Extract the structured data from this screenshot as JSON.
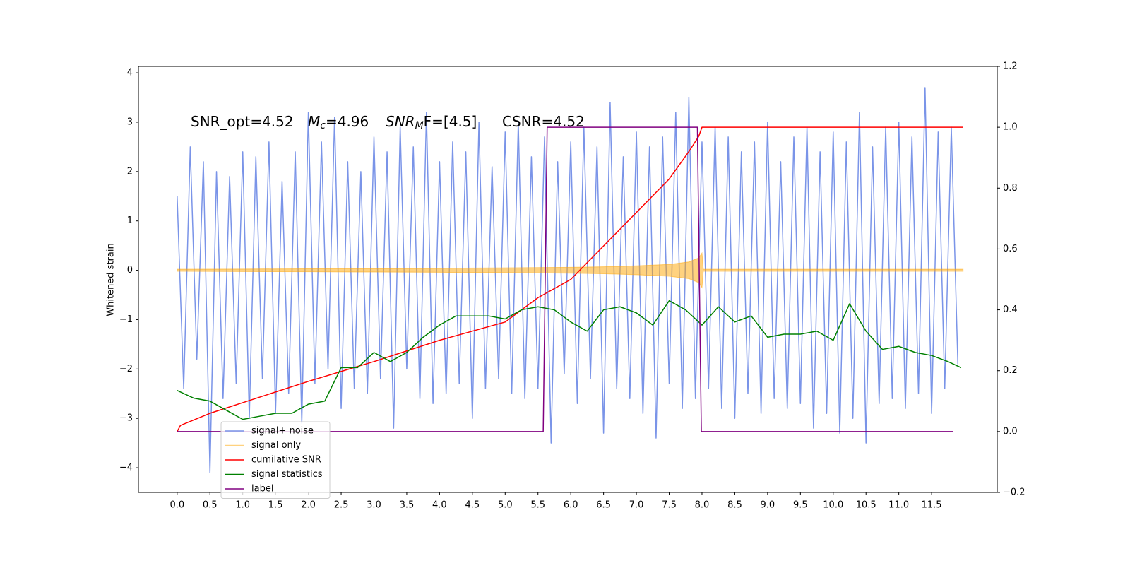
{
  "chart_data": {
    "type": "line",
    "ylabel": "Whitened strain",
    "annotation": [
      {
        "text": "SNR_opt=4.52"
      },
      {
        "text": "M",
        "sub": "c",
        "after": "=4.96"
      },
      {
        "text": "SNR",
        "sub": "M",
        "after": "F=[4.5]"
      },
      {
        "text": "CSNR=4.52"
      }
    ],
    "xlim": [
      -0.59,
      12.5
    ],
    "ylim": [
      -4.5,
      4.13
    ],
    "y2lim": [
      -0.2,
      1.2
    ],
    "xticks": [
      {
        "value": 0,
        "label": "0.0"
      },
      {
        "value": 0.5,
        "label": "0.5"
      },
      {
        "value": 1,
        "label": "1.0"
      },
      {
        "value": 1.5,
        "label": "1.5"
      },
      {
        "value": 2,
        "label": "2.0"
      },
      {
        "value": 2.5,
        "label": "2.5"
      },
      {
        "value": 3,
        "label": "3.0"
      },
      {
        "value": 3.5,
        "label": "3.5"
      },
      {
        "value": 4,
        "label": "4.0"
      },
      {
        "value": 4.5,
        "label": "4.5"
      },
      {
        "value": 5,
        "label": "5.0"
      },
      {
        "value": 5.5,
        "label": "5.5"
      },
      {
        "value": 6,
        "label": "6.0"
      },
      {
        "value": 6.5,
        "label": "6.5"
      },
      {
        "value": 7,
        "label": "7.0"
      },
      {
        "value": 7.5,
        "label": "7.5"
      },
      {
        "value": 8,
        "label": "8.0"
      },
      {
        "value": 8.5,
        "label": "8.5"
      },
      {
        "value": 9,
        "label": "9.0"
      },
      {
        "value": 9.5,
        "label": "9.5"
      },
      {
        "value": 10,
        "label": "10.0"
      },
      {
        "value": 10.5,
        "label": "10.5"
      },
      {
        "value": 11,
        "label": "11.0"
      },
      {
        "value": 11.5,
        "label": "11.5"
      }
    ],
    "yticks": [
      {
        "value": -4,
        "label": "−4"
      },
      {
        "value": -3,
        "label": "−3"
      },
      {
        "value": -2,
        "label": "−2"
      },
      {
        "value": -1,
        "label": "−1"
      },
      0,
      1,
      2,
      3,
      4
    ],
    "y2ticks": [
      {
        "value": -0.2,
        "label": "−0.2"
      },
      {
        "value": 0,
        "label": "0.0"
      },
      0.2,
      0.4,
      0.6,
      0.8,
      {
        "value": 1,
        "label": "1.0"
      },
      1.2
    ],
    "legend": "lower left",
    "series": [
      {
        "name": "signal+ noise",
        "color": "#7a94e8",
        "style": "line",
        "x": [
          0.0,
          0.1,
          0.2,
          0.3,
          0.4,
          0.5,
          0.6,
          0.7,
          0.8,
          0.9,
          1.0,
          1.1,
          1.2,
          1.3,
          1.4,
          1.5,
          1.6,
          1.7,
          1.8,
          1.9,
          2.0,
          2.1,
          2.2,
          2.3,
          2.4,
          2.5,
          2.6,
          2.7,
          2.8,
          2.9,
          3.0,
          3.1,
          3.2,
          3.3,
          3.4,
          3.5,
          3.6,
          3.7,
          3.8,
          3.9,
          4.0,
          4.1,
          4.2,
          4.3,
          4.4,
          4.5,
          4.6,
          4.7,
          4.8,
          4.9,
          5.0,
          5.1,
          5.2,
          5.3,
          5.4,
          5.5,
          5.6,
          5.7,
          5.8,
          5.9,
          6.0,
          6.1,
          6.2,
          6.3,
          6.4,
          6.5,
          6.6,
          6.7,
          6.8,
          6.9,
          7.0,
          7.1,
          7.2,
          7.3,
          7.4,
          7.5,
          7.6,
          7.7,
          7.8,
          7.9,
          8.0,
          8.1,
          8.2,
          8.3,
          8.4,
          8.5,
          8.6,
          8.7,
          8.8,
          8.9,
          9.0,
          9.1,
          9.2,
          9.3,
          9.4,
          9.5,
          9.6,
          9.7,
          9.8,
          9.9,
          10.0,
          10.1,
          10.2,
          10.3,
          10.4,
          10.5,
          10.6,
          10.7,
          10.8,
          10.9,
          11.0,
          11.1,
          11.2,
          11.3,
          11.4,
          11.5,
          11.6,
          11.7,
          11.8,
          11.9
        ],
        "values": [
          1.5,
          -2.4,
          2.5,
          -1.8,
          2.2,
          -4.1,
          2.0,
          -2.6,
          1.9,
          -2.3,
          2.4,
          -3.0,
          2.3,
          -2.2,
          2.6,
          -2.9,
          1.8,
          -2.5,
          2.4,
          -3.1,
          3.2,
          -2.3,
          2.6,
          -2.0,
          3.1,
          -2.8,
          2.2,
          -2.4,
          2.0,
          -2.5,
          2.7,
          -2.2,
          2.4,
          -3.2,
          2.9,
          -2.0,
          2.5,
          -2.6,
          3.2,
          -2.7,
          2.2,
          -2.5,
          2.6,
          -2.3,
          2.4,
          -3.0,
          3.0,
          -2.4,
          2.1,
          -2.2,
          2.8,
          -2.5,
          3.0,
          -2.6,
          2.3,
          -2.4,
          2.7,
          -3.5,
          2.2,
          -2.1,
          2.6,
          -2.7,
          2.9,
          -2.2,
          2.5,
          -3.3,
          3.4,
          -2.4,
          2.3,
          -2.6,
          2.8,
          -2.9,
          2.5,
          -3.4,
          2.7,
          -2.3,
          3.2,
          -2.8,
          3.5,
          -2.6,
          2.6,
          -2.4,
          2.9,
          -2.8,
          2.7,
          -3.0,
          2.4,
          -2.5,
          2.6,
          -2.9,
          3.0,
          -2.6,
          2.2,
          -2.8,
          2.7,
          -2.7,
          2.9,
          -3.2,
          2.4,
          -2.9,
          2.8,
          -3.3,
          2.6,
          -3.0,
          3.2,
          -3.5,
          2.5,
          -2.7,
          2.9,
          -2.6,
          3.0,
          -2.8,
          2.7,
          -2.5,
          3.7,
          -2.9,
          2.8,
          -2.4,
          2.9,
          -1.9
        ]
      },
      {
        "name": "signal only",
        "color": "#ffa500",
        "style": "band",
        "x": [
          0,
          1,
          2,
          3,
          4,
          5,
          5.5,
          6,
          6.5,
          7,
          7.5,
          7.8,
          7.95,
          8.0,
          8.02,
          11.98
        ],
        "values": [
          0.02,
          0.025,
          0.03,
          0.035,
          0.04,
          0.05,
          0.055,
          0.06,
          0.07,
          0.09,
          0.12,
          0.17,
          0.25,
          0.35,
          0.02,
          0.02
        ]
      },
      {
        "name": "cumilative SNR",
        "color": "#ff0000",
        "style": "line",
        "axis": "y2",
        "x": [
          0,
          0.05,
          0.5,
          1,
          2,
          3,
          4,
          5,
          5.5,
          6,
          6.5,
          7,
          7.5,
          7.8,
          7.95,
          8.0,
          11.98
        ],
        "values": [
          0.0,
          0.02,
          0.06,
          0.095,
          0.165,
          0.23,
          0.3,
          0.36,
          0.44,
          0.5,
          0.61,
          0.72,
          0.83,
          0.92,
          0.97,
          1.0,
          1.0
        ]
      },
      {
        "name": "signal statistics",
        "color": "#008000",
        "style": "line",
        "axis": "y2",
        "x": [
          0,
          0.25,
          0.5,
          0.75,
          1.0,
          1.25,
          1.5,
          1.75,
          2.0,
          2.25,
          2.5,
          2.75,
          3.0,
          3.25,
          3.5,
          3.75,
          4.0,
          4.25,
          4.5,
          4.75,
          5.0,
          5.25,
          5.5,
          5.75,
          6.0,
          6.25,
          6.5,
          6.75,
          7.0,
          7.25,
          7.5,
          7.75,
          8.0,
          8.25,
          8.5,
          8.75,
          9.0,
          9.25,
          9.5,
          9.75,
          10.0,
          10.25,
          10.5,
          10.75,
          11.0,
          11.25,
          11.5,
          11.75,
          11.95
        ],
        "values": [
          0.135,
          0.11,
          0.1,
          0.07,
          0.04,
          0.05,
          0.06,
          0.06,
          0.09,
          0.1,
          0.21,
          0.21,
          0.26,
          0.23,
          0.26,
          0.31,
          0.35,
          0.38,
          0.38,
          0.38,
          0.37,
          0.4,
          0.41,
          0.4,
          0.36,
          0.33,
          0.4,
          0.41,
          0.39,
          0.35,
          0.43,
          0.4,
          0.35,
          0.41,
          0.36,
          0.38,
          0.31,
          0.32,
          0.32,
          0.33,
          0.3,
          0.42,
          0.33,
          0.27,
          0.28,
          0.26,
          0.25,
          0.23,
          0.21
        ]
      },
      {
        "name": "label",
        "color": "#800080",
        "style": "line",
        "axis": "y2",
        "x": [
          0,
          5.58,
          5.64,
          7.93,
          7.99,
          11.83
        ],
        "values": [
          0,
          0,
          1,
          1,
          0,
          0
        ]
      }
    ]
  }
}
